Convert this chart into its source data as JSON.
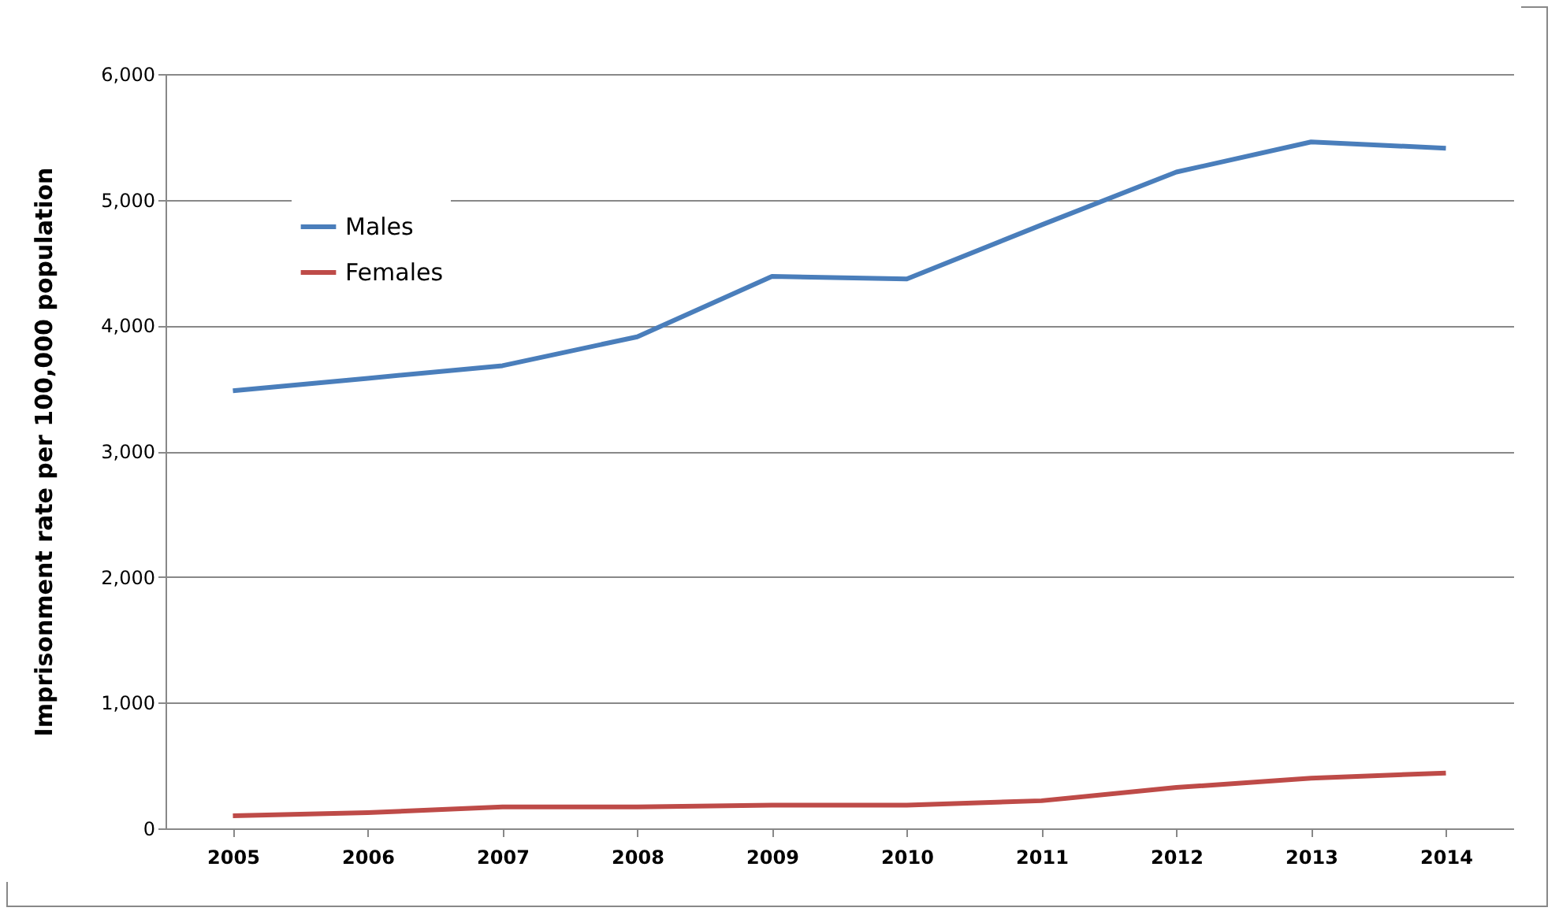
{
  "chart_data": {
    "type": "line",
    "ylabel": "Imprisonment  rate per 100,000  population",
    "categories": [
      "2005",
      "2006",
      "2007",
      "2008",
      "2009",
      "2010",
      "2011",
      "2012",
      "2013",
      "2014"
    ],
    "series": [
      {
        "name": "Males",
        "color": "#4a7ebb",
        "values": [
          3480,
          3580,
          3680,
          3910,
          4390,
          4370,
          4800,
          5220,
          5460,
          5410
        ]
      },
      {
        "name": "Females",
        "color": "#be4b48",
        "values": [
          100,
          125,
          170,
          170,
          185,
          185,
          220,
          325,
          400,
          440
        ]
      }
    ],
    "ylim": [
      0,
      6000
    ],
    "yticks": [
      {
        "value": 0,
        "label": "0"
      },
      {
        "value": 1000,
        "label": "1,000"
      },
      {
        "value": 2000,
        "label": "2,000"
      },
      {
        "value": 3000,
        "label": "3,000"
      },
      {
        "value": 4000,
        "label": "4,000"
      },
      {
        "value": 5000,
        "label": "5,000"
      },
      {
        "value": 6000,
        "label": "6,000"
      }
    ],
    "grid": "y",
    "legend": "top left",
    "marker": "none",
    "line_style": "solid"
  }
}
